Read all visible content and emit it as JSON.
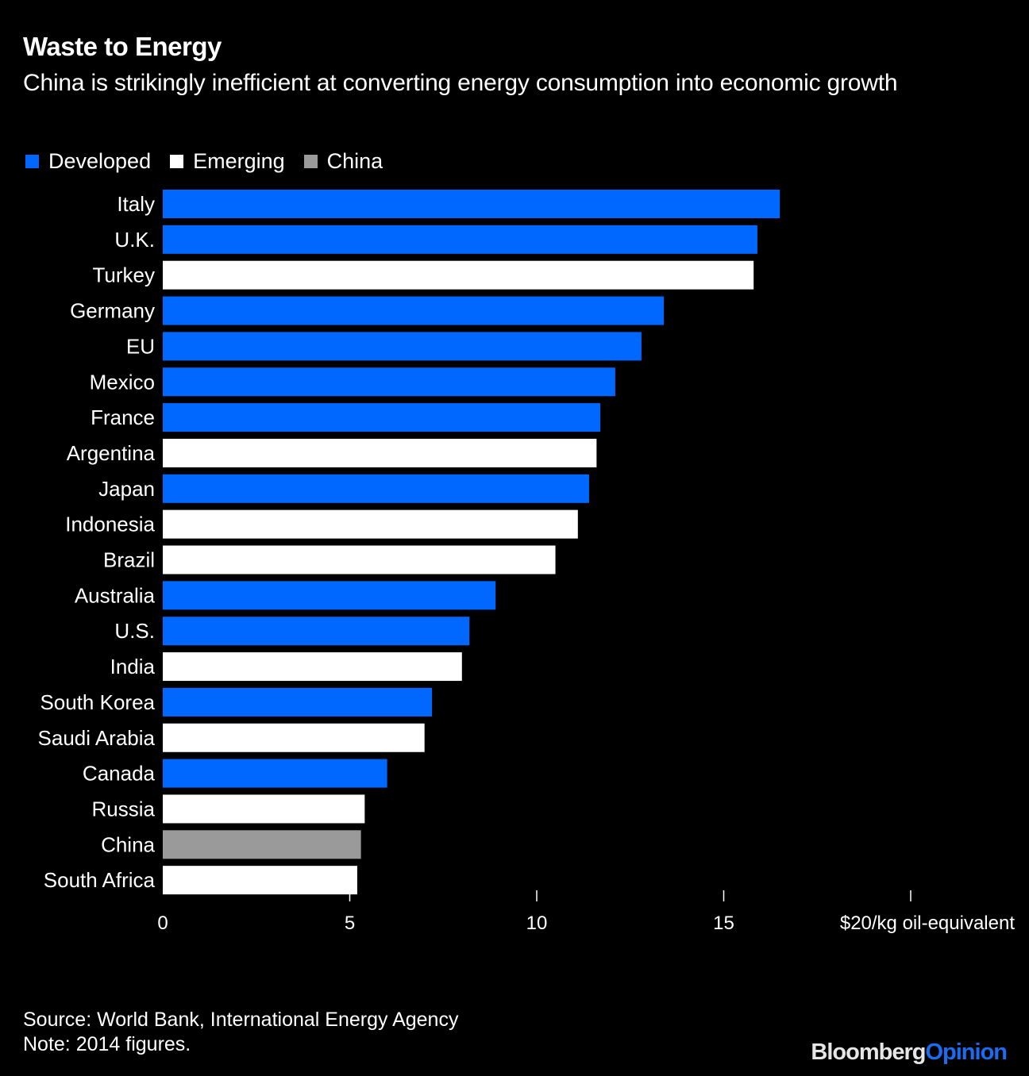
{
  "chart_data": {
    "type": "bar",
    "orientation": "horizontal",
    "title": "Waste to Energy",
    "subtitle": "China is strikingly inefficient at converting energy consumption into economic growth",
    "xlabel": "$20/kg oil-equivalent",
    "ylabel": "",
    "xlim": [
      0,
      20
    ],
    "xticks": [
      0,
      5,
      10,
      15,
      20
    ],
    "xtick_labels": [
      "0",
      "5",
      "10",
      "15",
      "$20/kg oil-equivalent"
    ],
    "grid": false,
    "legend": {
      "placement": "top-left",
      "entries": [
        {
          "name": "Developed",
          "color": "#0068ff"
        },
        {
          "name": "Emerging",
          "color": "#ffffff"
        },
        {
          "name": "China",
          "color": "#9a9a9a"
        }
      ]
    },
    "categories": [
      "Italy",
      "U.K.",
      "Turkey",
      "Germany",
      "EU",
      "Mexico",
      "France",
      "Argentina",
      "Japan",
      "Indonesia",
      "Brazil",
      "Australia",
      "U.S.",
      "India",
      "South Korea",
      "Saudi Arabia",
      "Canada",
      "Russia",
      "China",
      "South Africa"
    ],
    "values": [
      16.5,
      15.9,
      15.8,
      13.4,
      12.8,
      12.1,
      11.7,
      11.6,
      11.4,
      11.1,
      10.5,
      8.9,
      8.2,
      8.0,
      7.2,
      7.0,
      6.0,
      5.4,
      5.3,
      5.2
    ],
    "groups": [
      "Developed",
      "Developed",
      "Emerging",
      "Developed",
      "Developed",
      "Developed",
      "Developed",
      "Emerging",
      "Developed",
      "Emerging",
      "Emerging",
      "Developed",
      "Developed",
      "Emerging",
      "Developed",
      "Emerging",
      "Developed",
      "Emerging",
      "China",
      "Emerging"
    ]
  },
  "footer": {
    "source": "Source: World Bank, International Energy Agency",
    "note": "Note: 2014 figures."
  },
  "logo": {
    "part1": "Bloomberg",
    "part2": "Opinion"
  }
}
